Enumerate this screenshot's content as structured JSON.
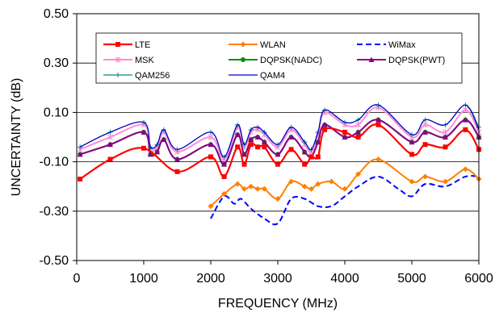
{
  "chart_data": {
    "type": "line",
    "xlabel": "FREQUENCY (MHz)",
    "ylabel": "UNCERTAINTY (dB)",
    "xlim": [
      0,
      6000
    ],
    "ylim": [
      -0.5,
      0.5
    ],
    "x_ticks": [
      0,
      1000,
      2000,
      3000,
      4000,
      5000,
      6000
    ],
    "x_tick_labels": [
      "0",
      "1000",
      "2000",
      "3000",
      "4000",
      "5000",
      "6000"
    ],
    "y_ticks": [
      0.5,
      0.3,
      0.1,
      -0.1,
      -0.3,
      -0.5
    ],
    "y_tick_labels": [
      "0.50",
      "0.30",
      "0.10",
      "-0.10",
      "-0.30",
      "-0.50"
    ],
    "grid": "horizontal",
    "legend_position": "top",
    "series": [
      {
        "name": "LTE",
        "color": "#ff0000",
        "dash": false,
        "marker": "square",
        "width": 2.2,
        "x": [
          50,
          500,
          1000,
          1500,
          2000,
          2200,
          2400,
          2500,
          2600,
          2700,
          2800,
          3000,
          3200,
          3400,
          3500,
          3600,
          3700,
          4000,
          4200,
          4500,
          5000,
          5200,
          5500,
          5800,
          6000
        ],
        "y": [
          -0.17,
          -0.09,
          -0.045,
          -0.14,
          -0.08,
          -0.16,
          -0.04,
          -0.11,
          -0.03,
          -0.04,
          -0.04,
          -0.11,
          -0.05,
          -0.11,
          -0.08,
          -0.08,
          0.03,
          0.02,
          0.0,
          0.05,
          -0.07,
          -0.03,
          -0.04,
          0.03,
          -0.05
        ]
      },
      {
        "name": "WLAN",
        "color": "#ff7f00",
        "dash": false,
        "marker": "diamond",
        "width": 2,
        "x": [
          2000,
          2200,
          2400,
          2500,
          2600,
          2700,
          2800,
          3000,
          3200,
          3400,
          3500,
          3600,
          3800,
          4000,
          4200,
          4500,
          5000,
          5200,
          5500,
          5800,
          6000
        ],
        "y": [
          -0.28,
          -0.23,
          -0.19,
          -0.21,
          -0.2,
          -0.21,
          -0.21,
          -0.25,
          -0.18,
          -0.2,
          -0.21,
          -0.19,
          -0.18,
          -0.21,
          -0.15,
          -0.09,
          -0.18,
          -0.16,
          -0.18,
          -0.13,
          -0.17
        ]
      },
      {
        "name": "WiMax",
        "color": "#0000ff",
        "dash": true,
        "marker": "none",
        "width": 2,
        "x": [
          2000,
          2200,
          2350,
          2450,
          2600,
          2800,
          3000,
          3200,
          3400,
          3600,
          3800,
          4000,
          4200,
          4500,
          4800,
          5000,
          5200,
          5500,
          5800,
          6000
        ],
        "y": [
          -0.33,
          -0.24,
          -0.27,
          -0.25,
          -0.29,
          -0.33,
          -0.35,
          -0.25,
          -0.25,
          -0.28,
          -0.28,
          -0.24,
          -0.2,
          -0.16,
          -0.21,
          -0.24,
          -0.19,
          -0.2,
          -0.16,
          -0.16
        ]
      },
      {
        "name": "MSK",
        "color": "#ff8cd8",
        "dash": false,
        "marker": "star",
        "width": 2,
        "x": [
          50,
          500,
          1000,
          1100,
          1200,
          1300,
          1500,
          2000,
          2200,
          2400,
          2500,
          2600,
          2700,
          2800,
          3000,
          3200,
          3400,
          3500,
          3600,
          3700,
          4000,
          4200,
          4500,
          5000,
          5200,
          5500,
          5800,
          6000
        ],
        "y": [
          -0.05,
          0.0,
          0.05,
          -0.05,
          -0.04,
          0.02,
          -0.06,
          0.0,
          -0.09,
          0.04,
          -0.04,
          0.02,
          0.03,
          0.01,
          -0.04,
          0.03,
          -0.03,
          -0.06,
          0.01,
          0.1,
          0.05,
          0.05,
          0.12,
          0.0,
          0.05,
          0.02,
          0.11,
          0.02
        ]
      },
      {
        "name": "DQPSK(NADC)",
        "color": "#009000",
        "dash": false,
        "marker": "circle",
        "width": 2,
        "x": [
          50,
          500,
          1000,
          1100,
          1200,
          1300,
          1500,
          2000,
          2200,
          2400,
          2500,
          2600,
          2700,
          2800,
          3000,
          3200,
          3400,
          3500,
          3600,
          3700,
          4000,
          4200,
          4500,
          5000,
          5200,
          5500,
          5800,
          6000
        ],
        "y": [
          -0.07,
          -0.03,
          0.02,
          -0.07,
          -0.06,
          -0.01,
          -0.09,
          -0.03,
          -0.11,
          0.01,
          -0.07,
          -0.01,
          0.0,
          -0.02,
          -0.07,
          0.0,
          -0.06,
          -0.08,
          -0.02,
          0.05,
          0.0,
          0.02,
          0.07,
          -0.02,
          0.02,
          0.0,
          0.07,
          0.0
        ]
      },
      {
        "name": "DQPSK(PWT)",
        "color": "#8b008b",
        "dash": false,
        "marker": "triangle",
        "width": 2,
        "x": [
          50,
          500,
          1000,
          1100,
          1200,
          1300,
          1500,
          2000,
          2200,
          2400,
          2500,
          2600,
          2700,
          2800,
          3000,
          3200,
          3400,
          3500,
          3600,
          3700,
          4000,
          4200,
          4500,
          5000,
          5200,
          5500,
          5800,
          6000
        ],
        "y": [
          -0.07,
          -0.03,
          0.02,
          -0.07,
          -0.06,
          -0.01,
          -0.09,
          -0.03,
          -0.11,
          0.01,
          -0.07,
          -0.01,
          0.0,
          -0.02,
          -0.07,
          0.0,
          -0.06,
          -0.08,
          -0.02,
          0.05,
          0.0,
          0.02,
          0.07,
          -0.02,
          0.02,
          0.0,
          0.07,
          0.0
        ]
      },
      {
        "name": "QAM256",
        "color": "#008b8b",
        "dash": false,
        "marker": "plus",
        "width": 1.2,
        "x": [
          50,
          500,
          1000,
          1100,
          1200,
          1300,
          1500,
          2000,
          2200,
          2400,
          2500,
          2600,
          2700,
          2800,
          3000,
          3200,
          3400,
          3500,
          3600,
          3700,
          4000,
          4200,
          4500,
          5000,
          5200,
          5500,
          5800,
          6000
        ],
        "y": [
          -0.04,
          0.02,
          0.06,
          -0.04,
          -0.03,
          0.03,
          -0.05,
          0.02,
          -0.08,
          0.05,
          -0.03,
          0.03,
          0.04,
          0.02,
          -0.03,
          0.04,
          -0.02,
          -0.05,
          0.02,
          0.11,
          0.06,
          0.07,
          0.13,
          0.01,
          0.07,
          0.05,
          0.13,
          0.04
        ]
      },
      {
        "name": "QAM4",
        "color": "#0000cc",
        "dash": false,
        "marker": "none",
        "width": 1.2,
        "x": [
          50,
          500,
          1000,
          1100,
          1200,
          1300,
          1500,
          2000,
          2200,
          2400,
          2500,
          2600,
          2700,
          2800,
          3000,
          3200,
          3400,
          3500,
          3600,
          3700,
          4000,
          4200,
          4500,
          5000,
          5200,
          5500,
          5800,
          6000
        ],
        "y": [
          -0.04,
          0.02,
          0.06,
          -0.04,
          -0.03,
          0.03,
          -0.05,
          0.02,
          -0.08,
          0.05,
          -0.03,
          0.03,
          0.04,
          0.02,
          -0.03,
          0.04,
          -0.02,
          -0.05,
          0.02,
          0.11,
          0.06,
          0.07,
          0.13,
          0.01,
          0.07,
          0.05,
          0.13,
          0.03
        ]
      }
    ]
  }
}
